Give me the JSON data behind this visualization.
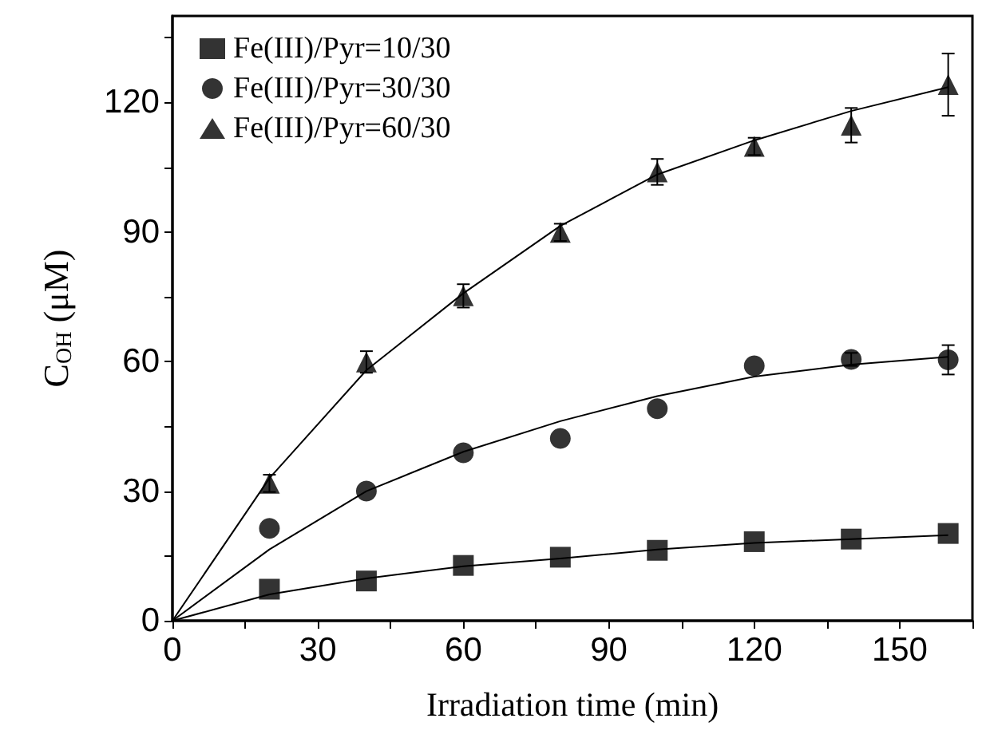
{
  "chart_data": {
    "type": "scatter",
    "xlabel": "Irradiation time (min)",
    "ylabel": "C$_{OH}$ (μM)",
    "xlim": [
      0,
      165
    ],
    "xticks": [
      0,
      {
        "value": 15,
        "label": null
      },
      30,
      {
        "value": 45,
        "label": null
      },
      60,
      {
        "value": 75,
        "label": null
      },
      90,
      {
        "value": 105,
        "label": null
      },
      120,
      {
        "value": 135,
        "label": null
      },
      150,
      {
        "value": 165,
        "label": null
      }
    ],
    "ylim": [
      0,
      140
    ],
    "yticks": [
      0,
      {
        "value": 15,
        "label": null
      },
      30,
      {
        "value": 45,
        "label": null
      },
      60,
      {
        "value": 75,
        "label": null
      },
      90,
      {
        "value": 105,
        "label": null
      },
      120,
      {
        "value": 135,
        "label": null
      }
    ],
    "grid": false,
    "legend": "top left",
    "x": [
      20,
      40,
      60,
      80,
      100,
      120,
      140,
      160
    ],
    "series": [
      {
        "name": "Fe(III)/Pyr=10/30",
        "color": "#000000",
        "marker": "square",
        "values": [
          7.3,
          9.2,
          12.8,
          14.7,
          16.3,
          18.3,
          18.9,
          20.2
        ]
      },
      {
        "name": "Fe(III)/Pyr=30/30",
        "color": "#000000",
        "marker": "circle",
        "values": [
          21.4,
          30,
          38.9,
          42.2,
          49.1,
          59,
          60.5,
          60.4
        ],
        "errors": [
          null,
          null,
          null,
          null,
          null,
          null,
          1.5,
          3.4
        ]
      },
      {
        "name": "Fe(III)/Pyr=60/30",
        "color": "#000000",
        "marker": "triangle",
        "values": [
          31.8,
          59.9,
          75.2,
          89.9,
          103.9,
          109.8,
          114.7,
          124.1
        ],
        "errors": [
          2,
          2.5,
          2.7,
          2,
          3,
          2,
          4,
          7.2
        ]
      },
      {
        "type": "line",
        "color": "#000000",
        "marker": "none",
        "x": [
          0,
          20,
          40,
          60,
          80,
          100,
          120,
          140,
          160
        ],
        "values": [
          0,
          6.1,
          9.8,
          12.6,
          14.4,
          16.5,
          18,
          18.9,
          19.8
        ]
      },
      {
        "type": "line",
        "color": "#000000",
        "marker": "none",
        "x": [
          0,
          20,
          40,
          60,
          80,
          100,
          120,
          140,
          160
        ],
        "values": [
          0,
          16.5,
          30,
          39.1,
          46.2,
          52,
          56.5,
          59.3,
          61.1
        ]
      },
      {
        "type": "line",
        "color": "#000000",
        "marker": "none",
        "x": [
          0,
          20,
          40,
          60,
          80,
          100,
          120,
          140,
          160
        ],
        "values": [
          0,
          33,
          58,
          75.8,
          91.4,
          103.3,
          111.2,
          118,
          123.5
        ]
      }
    ]
  }
}
